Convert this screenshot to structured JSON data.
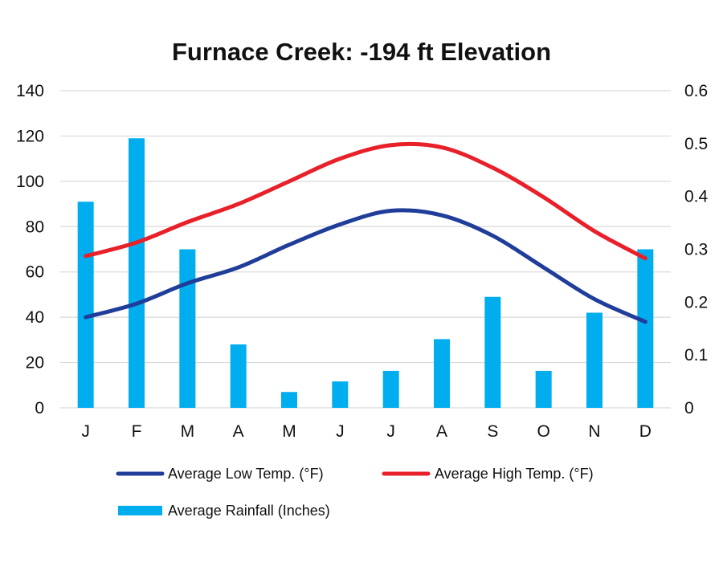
{
  "chart_data": {
    "type": "bar+line",
    "title": "Furnace Creek: -194 ft Elevation",
    "categories": [
      "J",
      "F",
      "M",
      "A",
      "M",
      "J",
      "J",
      "A",
      "S",
      "O",
      "N",
      "D"
    ],
    "left_axis": {
      "ylim": [
        0,
        140
      ],
      "ticks": [
        "0",
        "20",
        "40",
        "60",
        "80",
        "100",
        "120",
        "140"
      ]
    },
    "right_axis": {
      "ylim": [
        0,
        0.6
      ],
      "ticks": [
        "0",
        "0.1",
        "0.2",
        "0.3",
        "0.4",
        "0.5",
        "0.6"
      ]
    },
    "grid": true,
    "legend_position": "bottom",
    "series": [
      {
        "name": "Average Low Temp. (°F)",
        "kind": "line",
        "axis": "left",
        "color": "#1f3d99",
        "values": [
          40,
          46,
          55,
          62,
          72,
          81,
          87,
          85,
          76,
          62,
          48,
          38
        ]
      },
      {
        "name": "Average High Temp. (°F)",
        "kind": "line",
        "axis": "left",
        "color": "#e8202a",
        "values": [
          67,
          73,
          82,
          90,
          100,
          110,
          116,
          115,
          106,
          93,
          78,
          66
        ]
      },
      {
        "name": "Average Rainfall (Inches)",
        "kind": "bar",
        "axis": "right",
        "color": "#00aeef",
        "values": [
          0.39,
          0.51,
          0.3,
          0.12,
          0.03,
          0.05,
          0.07,
          0.13,
          0.21,
          0.07,
          0.18,
          0.3
        ]
      }
    ]
  }
}
